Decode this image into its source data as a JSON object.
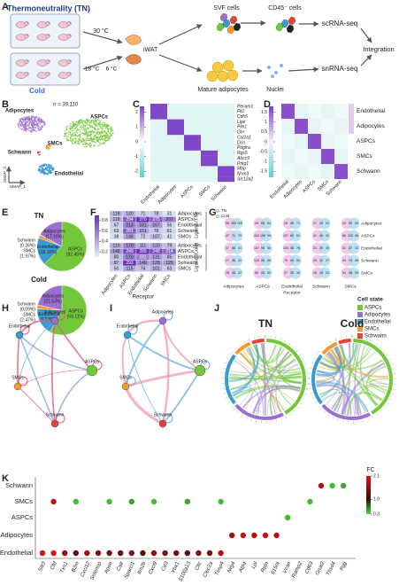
{
  "panel_labels": [
    "A",
    "B",
    "C",
    "D",
    "E",
    "F",
    "G",
    "H",
    "I",
    "J",
    "K"
  ],
  "a": {
    "tn": "Thermoneutrality (TN)",
    "cold": "Cold",
    "temp_tn": "30 °C",
    "temp_cold1": "18 °C",
    "temp_cold2": "6 °C",
    "tissue": "iWAT",
    "svf": "SVF cells",
    "cd45": "CD45⁻ cells",
    "scrna": "scRNA-seq",
    "adipocytes": "Mature adipocytes",
    "nuclei": "Nuclei",
    "snrna": "snRNA-seq",
    "integration": "Integration"
  },
  "b": {
    "n": "n = 39,110",
    "clusters": [
      "Adipocytes",
      "ASPCs",
      "SMCs",
      "Schwann",
      "Endothelial"
    ],
    "x_axis": "UMAP_1",
    "y_axis": "UMAP_2"
  },
  "c": {
    "genes": [
      "Pecam1",
      "Flt1",
      "Cdh5",
      "Lipe",
      "Plin1",
      "Ghr",
      "Col1a1",
      "Dcn",
      "Pdgfra",
      "Rgs5",
      "Abcc9",
      "Prkg1",
      "Mbp",
      "Nrxn3",
      "Slc12a2"
    ],
    "columns": [
      "Endothelial",
      "Adipocytes",
      "ASPCs",
      "SMCs",
      "Schwann"
    ],
    "colorbar_ticks": [
      2,
      1,
      0,
      -1,
      -2
    ],
    "colorbar_lim": [
      -2.4,
      2.4
    ]
  },
  "d": {
    "rows": [
      "Endothelial",
      "Adipocytes",
      "ASPCs",
      "SMCs",
      "Schwann"
    ],
    "columns": [
      "Endothelial",
      "Adipocytes",
      "ASPCs",
      "SMCs",
      "Schwann"
    ],
    "colorbar_ticks": [
      1.5,
      1,
      0.5,
      0,
      -0.5,
      -1,
      -1.5
    ],
    "colorbar_lim": [
      -1.8,
      1.8
    ]
  },
  "e": {
    "pies": [
      {
        "title": "TN",
        "slices": [
          {
            "name": "ASPCs",
            "value": 62.45,
            "label": "(62.45%)"
          },
          {
            "name": "Endothelial",
            "value": 18.16,
            "label": "(18.16%)"
          },
          {
            "name": "SMCs",
            "value": 1.97,
            "label": "(1.97%)"
          },
          {
            "name": "Schwann",
            "value": 0.26,
            "label": "(0.26%)"
          },
          {
            "name": "Adipocytes",
            "value": 17.16,
            "label": "(17.16%)"
          }
        ]
      },
      {
        "title": "Cold",
        "slices": [
          {
            "name": "ASPCs",
            "value": 58.11,
            "label": "(58.11%)"
          },
          {
            "name": "Endothelial",
            "value": 17.8,
            "label": "(17.80%)"
          },
          {
            "name": "SMCs",
            "value": 2.47,
            "label": "(2.47%)"
          },
          {
            "name": "Schwann",
            "value": 0.09,
            "label": "(0.09%)"
          },
          {
            "name": "Adipocytes",
            "value": 21.53,
            "label": "(21.53%)"
          }
        ]
      }
    ]
  },
  "f": {
    "colorbar_ticks": [
      0.8,
      0.6,
      0.4,
      0.2
    ],
    "colorbar_lim": [
      0.1,
      0.9
    ],
    "columns": [
      "Adipocytes",
      "ASPCs",
      "Endothelial",
      "Schwann",
      "SMCs"
    ],
    "x_label": "Receptor",
    "groups": [
      {
        "label": "Ligand (TN)",
        "rows": [
          {
            "name": "Adipocytes",
            "values": [
              118,
              120,
              71,
              78,
              31
            ]
          },
          {
            "name": "ASPCs",
            "values": [
              118,
              294,
              370,
              275,
              207
            ]
          },
          {
            "name": "Endothelial",
            "values": [
              67,
              213,
              181,
              167,
              56
            ]
          },
          {
            "name": "Schwann",
            "values": [
              63,
              281,
              151,
              78,
              61
            ]
          },
          {
            "name": "SMCs",
            "values": [
              38,
              148,
              72,
              107,
              41
            ]
          }
        ]
      },
      {
        "label": "Ligand (Cold)",
        "rows": [
          {
            "name": "Adipocytes",
            "values": [
              110,
              170,
              111,
              120,
              79
            ]
          },
          {
            "name": "ASPCs",
            "values": [
              142,
              249,
              289,
              248,
              214
            ]
          },
          {
            "name": "Endothelial",
            "values": [
              80,
              170,
              181,
              131,
              85
            ]
          },
          {
            "name": "Schwann",
            "values": [
              87,
              293,
              140,
              128,
              126
            ]
          },
          {
            "name": "SMCs",
            "values": [
              50,
              115,
              74,
              101,
              63
            ]
          }
        ]
      }
    ]
  },
  "g": {
    "legend": [
      "TN",
      "Cold"
    ],
    "rows": [
      "Adipocytes",
      "ASPCs",
      "Endothelial",
      "Schwann",
      "SMCs"
    ],
    "columns": [
      "Adipocytes",
      "ASPCs",
      "Endothelial",
      "Schwann",
      "SMCs"
    ],
    "x_label": "Receptor",
    "cells": [
      [
        [
          55,
          163,
          105
        ],
        [
          26,
          65,
          64
        ],
        [
          28,
          49,
          71
        ],
        [
          17,
          18,
          41
        ],
        [
          24,
          39,
          30
        ]
      ],
      [
        [
          47,
          71,
          79
        ],
        [
          404,
          196,
          99
        ],
        [
          157,
          60,
          91
        ],
        [
          41,
          40,
          29
        ],
        [
          86,
          123,
          95
        ]
      ],
      [
        [
          37,
          66,
          41
        ],
        [
          157,
          96,
          50
        ],
        [
          104,
          46,
          78
        ],
        [
          23,
          20,
          30
        ],
        [
          51,
          57,
          33
        ]
      ],
      [
        [
          27,
          36,
          31
        ],
        [
          123,
          99,
          60
        ],
        [
          79,
          45,
          53
        ],
        [
          20,
          12,
          27
        ],
        [
          54,
          74,
          56
        ]
      ],
      [
        [
          28,
          48,
          22
        ],
        [
          85,
          43,
          52
        ],
        [
          37,
          35,
          39
        ],
        [
          10,
          15,
          23
        ],
        [
          54,
          48,
          53
        ]
      ]
    ]
  },
  "cell_state": {
    "title": "Cell state",
    "items": [
      {
        "name": "ASPCs",
        "color": "#72c83a"
      },
      {
        "name": "Adipocytes",
        "color": "#9a6fd0"
      },
      {
        "name": "Endothelial",
        "color": "#3a9bd0"
      },
      {
        "name": "SMCs",
        "color": "#f39a2a"
      },
      {
        "name": "Schwann",
        "color": "#e8403a"
      }
    ]
  },
  "network_nodes": [
    "Endothelial",
    "Adipocytes",
    "ASPCs",
    "SMCs",
    "Schwann"
  ],
  "j": {
    "titles": [
      "TN",
      "Cold"
    ]
  },
  "k": {
    "genes": [
      "Slit3",
      "Cfd",
      "Txn1",
      "B2m",
      "Cxcl12",
      "Selenop",
      "Apoe",
      "Calr",
      "Sparcl1",
      "Itm2b",
      "Cxcl9",
      "Cd3",
      "Ybx1",
      "S100a13",
      "Cltc",
      "Clec2a",
      "Timp4",
      "Nrg4",
      "Atpa",
      "Lpl",
      "Retn",
      "Il15ra",
      "Vcan",
      "Ramp2",
      "Cd63",
      "Gnai2",
      "Thsd4",
      "Fgg"
    ],
    "rows": [
      {
        "name": "Schwann",
        "fc": [
          null,
          null,
          null,
          null,
          null,
          null,
          null,
          null,
          null,
          null,
          null,
          null,
          null,
          null,
          null,
          null,
          null,
          null,
          null,
          null,
          null,
          null,
          null,
          null,
          null,
          1.8,
          0.4,
          0.5
        ]
      },
      {
        "name": "SMCs",
        "fc": [
          null,
          1.9,
          null,
          0.4,
          null,
          null,
          0.4,
          null,
          0.5,
          null,
          0.4,
          null,
          null,
          0.5,
          null,
          null,
          0.4,
          null,
          null,
          null,
          null,
          null,
          null,
          null,
          0.4,
          null,
          null,
          null
        ]
      },
      {
        "name": "ASPCs",
        "fc": [
          null,
          null,
          null,
          null,
          null,
          null,
          null,
          null,
          null,
          null,
          null,
          null,
          null,
          null,
          null,
          null,
          null,
          null,
          null,
          null,
          null,
          null,
          0.4,
          null,
          null,
          null,
          null,
          null
        ]
      },
      {
        "name": "Adipocytes",
        "fc": [
          null,
          null,
          null,
          null,
          null,
          null,
          null,
          null,
          null,
          null,
          null,
          null,
          null,
          null,
          null,
          null,
          null,
          1.7,
          1.9,
          1.8,
          1.9,
          1.8,
          null,
          null,
          null,
          null,
          null,
          null
        ]
      },
      {
        "name": "Endothelial",
        "fc": [
          2.0,
          2.1,
          1.6,
          1.3,
          1.7,
          1.5,
          1.4,
          1.3,
          1.5,
          1.2,
          1.6,
          1.5,
          1.4,
          1.3,
          1.5,
          1.4,
          1.8,
          null,
          null,
          null,
          null,
          null,
          null,
          null,
          null,
          null,
          null,
          null
        ]
      }
    ],
    "legend": {
      "title": "FC",
      "ticks": [
        2.1,
        {
          "value": 1,
          "label": "1.0"
        },
        0.3
      ],
      "lim": [
        0.3,
        2.1
      ]
    }
  }
}
